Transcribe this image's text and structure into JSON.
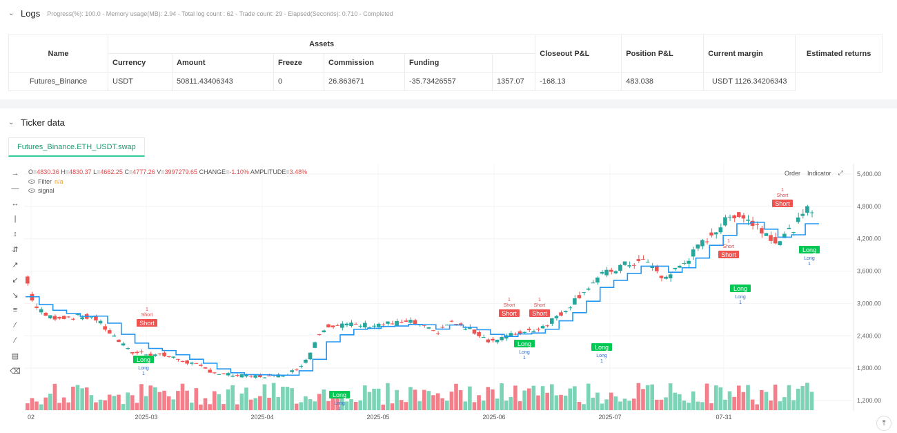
{
  "logs": {
    "title": "Logs",
    "meta": "Progress(%): 100.0  -  Memory usage(MB): 2.94  -  Total log count : 62  -  Trade count:  29  -  Elapsed(Seconds): 0.710  -  Completed"
  },
  "assets_table": {
    "group_header": "Assets",
    "headers": {
      "name": "Name",
      "currency": "Currency",
      "amount": "Amount",
      "freeze": "Freeze",
      "commission": "Commission",
      "funding": "Funding",
      "closeout": "Closeout P&L",
      "position": "Position P&L",
      "margin": "Current margin",
      "returns": "Estimated returns"
    },
    "row": {
      "name": "Futures_Binance",
      "currency": "USDT",
      "amount": "50811.43406343",
      "freeze": "0",
      "commission": "26.863671",
      "funding": "-35.73426557",
      "closeout": "1357.07",
      "position": "-168.13",
      "margin": "483.038",
      "returns": "USDT 1126.34206343"
    }
  },
  "ticker": {
    "title": "Ticker data",
    "tab": "Futures_Binance.ETH_USDT.swap"
  },
  "chart": {
    "ohlc": {
      "o_label": "O=",
      "o": "4830.36",
      "h_label": " H=",
      "h": "4830.37",
      "l_label": " L=",
      "l": "4662.25",
      "c_label": " C=",
      "c": "4777.26",
      "v_label": " V=",
      "v": "3997279.65",
      "change_label": " CHANGE=",
      "change": "-1.10%",
      "amp_label": " AMPLITUDE=",
      "amp": "3.48%"
    },
    "indicators": [
      {
        "name": "Filter",
        "value": "n/a"
      },
      {
        "name": "signal",
        "value": ""
      }
    ],
    "buttons": {
      "order": "Order",
      "indicator": "Indicator"
    },
    "colors": {
      "up": "#26a69a",
      "down": "#ef5350",
      "vol_up": "#7dd3b6",
      "vol_down": "#f37f8a",
      "filter": "#2196f3",
      "long": "#00c853",
      "short": "#ef5350"
    }
  },
  "chart_data": {
    "type": "candlestick",
    "x_labels": [
      "02",
      "2025-03",
      "2025-04",
      "2025-05",
      "2025-06",
      "2025-07",
      "07-31"
    ],
    "y_ticks": [
      "5,400.00",
      "4,800.00",
      "4,200.00",
      "3,600.00",
      "3,000.00",
      "2,400.00",
      "1,800.00",
      "1,200.00"
    ],
    "signals": [
      {
        "label": "Long",
        "sub": "Long",
        "count": "1"
      },
      {
        "label": "Short",
        "sub": "Short",
        "count": "1"
      }
    ]
  }
}
